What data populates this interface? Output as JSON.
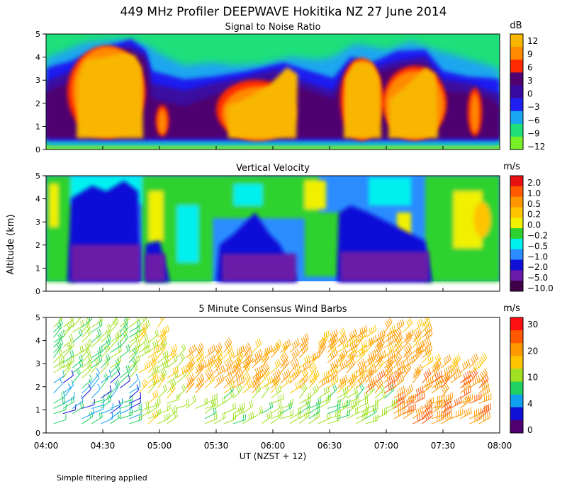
{
  "figure": {
    "title": "449 MHz Profiler DEEPWAVE Hokitika NZ 27 June 2014",
    "ylabel": "Altitude (km)",
    "footnote": "Simple filtering applied"
  },
  "chart_data": [
    {
      "type": "heatmap",
      "title": "Signal to Noise Ratio",
      "units": "dB",
      "xlabel": "UT  (NZST + 12)",
      "x_ticks": [
        "04:00",
        "04:30",
        "05:00",
        "05:30",
        "06:00",
        "06:30",
        "07:00",
        "07:30",
        "08:00"
      ],
      "x_range": [
        "04:00",
        "08:00"
      ],
      "ylim": [
        0,
        5
      ],
      "y_ticks": [
        0,
        1,
        2,
        3,
        4,
        5
      ],
      "colorbar": {
        "ticks": [
          "12",
          "9",
          "6",
          "3",
          "0",
          "−3",
          "−6",
          "−9",
          "−12"
        ],
        "colors": [
          "#f8b600",
          "#ff8a00",
          "#ff2a00",
          "#500070",
          "#3a0aa0",
          "#1e1ef0",
          "#1aa6f0",
          "#1ee07a",
          "#78f028"
        ]
      },
      "regions": [
        {
          "t": [
            "04:08",
            "04:46"
          ],
          "alt": [
            0.3,
            4.3
          ],
          "level_db": 12
        },
        {
          "t": [
            "04:57",
            "05:03"
          ],
          "alt": [
            0.4,
            1.7
          ],
          "level_db": 9
        },
        {
          "t": [
            "05:28",
            "05:50"
          ],
          "alt": [
            0.5,
            2.2
          ],
          "level_db": 12
        },
        {
          "t": [
            "05:50",
            "06:08"
          ],
          "alt": [
            0.5,
            3.2
          ],
          "level_db": 12
        },
        {
          "t": [
            "06:33",
            "06:48"
          ],
          "alt": [
            0.4,
            3.8
          ],
          "level_db": 12
        },
        {
          "t": [
            "06:55",
            "07:18"
          ],
          "alt": [
            0.4,
            3.3
          ],
          "level_db": 12
        },
        {
          "t": [
            "07:43",
            "07:47"
          ],
          "alt": [
            0.6,
            3.0
          ],
          "level_db": 6
        }
      ]
    },
    {
      "type": "heatmap",
      "title": "Vertical Velocity",
      "units": "m/s",
      "x_ticks": [
        "04:00",
        "04:30",
        "05:00",
        "05:30",
        "06:00",
        "06:30",
        "07:00",
        "07:30",
        "08:00"
      ],
      "ylim": [
        0,
        5
      ],
      "y_ticks": [
        0,
        1,
        2,
        3,
        4,
        5
      ],
      "colorbar": {
        "ticks": [
          "2.0",
          "1.0",
          "0.5",
          "0.2",
          "0.0",
          "−0.2",
          "−0.5",
          "−1.0",
          "−2.0",
          "−5.0",
          "−10.0"
        ],
        "colors": [
          "#e81010",
          "#ff5a00",
          "#ff9600",
          "#ffc400",
          "#f0f000",
          "#2ed22e",
          "#00f0f0",
          "#2a8cff",
          "#1010d8",
          "#6a1aa8",
          "#400048"
        ]
      },
      "regions": [
        {
          "t": [
            "04:05",
            "04:35"
          ],
          "alt": [
            0.4,
            1.8
          ],
          "w": -5.0
        },
        {
          "t": [
            "05:32",
            "06:05"
          ],
          "alt": [
            0.4,
            1.2
          ],
          "w": -5.0
        },
        {
          "t": [
            "06:35",
            "07:00"
          ],
          "alt": [
            0.4,
            1.3
          ],
          "w": -5.0
        },
        {
          "t": [
            "07:00",
            "07:25"
          ],
          "alt": [
            0.4,
            1.2
          ],
          "w": -5.0
        }
      ]
    },
    {
      "type": "scatter",
      "subtype": "wind-barbs",
      "title": "5 Minute Consensus Wind Barbs",
      "units": "m/s",
      "x_ticks": [
        "04:00",
        "04:30",
        "05:00",
        "05:30",
        "06:00",
        "06:30",
        "07:00",
        "07:30",
        "08:00"
      ],
      "ylim": [
        0,
        5
      ],
      "y_ticks": [
        0,
        1,
        2,
        3,
        4,
        5
      ],
      "colorbar": {
        "ticks": [
          "30",
          "20",
          "10",
          "4",
          "0"
        ],
        "colors": [
          "#ff1010",
          "#ff5800",
          "#ff9800",
          "#ffc400",
          "#a0e020",
          "#20d060",
          "#10a0f0",
          "#1010d8",
          "#500070"
        ]
      },
      "barbs": [
        {
          "t": "04:15",
          "alt": 4.4,
          "speed_ms": 10
        },
        {
          "t": "04:25",
          "alt": 4.6,
          "speed_ms": 4
        },
        {
          "t": "04:35",
          "alt": 4.3,
          "speed_ms": 10
        },
        {
          "t": "04:45",
          "alt": 4.2,
          "speed_ms": 15
        },
        {
          "t": "04:10",
          "alt": 3.5,
          "speed_ms": 10
        },
        {
          "t": "04:30",
          "alt": 3.3,
          "speed_ms": 12
        },
        {
          "t": "04:20",
          "alt": 2.0,
          "speed_ms": 6
        },
        {
          "t": "04:30",
          "alt": 1.7,
          "speed_ms": 4
        },
        {
          "t": "04:40",
          "alt": 1.3,
          "speed_ms": 5
        },
        {
          "t": "04:10",
          "alt": 1.0,
          "speed_ms": 8
        },
        {
          "t": "05:00",
          "alt": 3.0,
          "speed_ms": 18
        },
        {
          "t": "05:30",
          "alt": 3.2,
          "speed_ms": 18
        },
        {
          "t": "06:00",
          "alt": 3.4,
          "speed_ms": 20
        },
        {
          "t": "06:30",
          "alt": 3.6,
          "speed_ms": 20
        },
        {
          "t": "07:00",
          "alt": 4.0,
          "speed_ms": 20
        },
        {
          "t": "07:30",
          "alt": 4.6,
          "speed_ms": 20
        },
        {
          "t": "05:45",
          "alt": 1.2,
          "speed_ms": 12
        },
        {
          "t": "06:15",
          "alt": 1.0,
          "speed_ms": 12
        },
        {
          "t": "06:45",
          "alt": 1.2,
          "speed_ms": 13
        },
        {
          "t": "07:25",
          "alt": 1.0,
          "speed_ms": 24
        },
        {
          "t": "07:40",
          "alt": 1.6,
          "speed_ms": 24
        },
        {
          "t": "07:10",
          "alt": 2.2,
          "speed_ms": 22
        }
      ]
    }
  ]
}
